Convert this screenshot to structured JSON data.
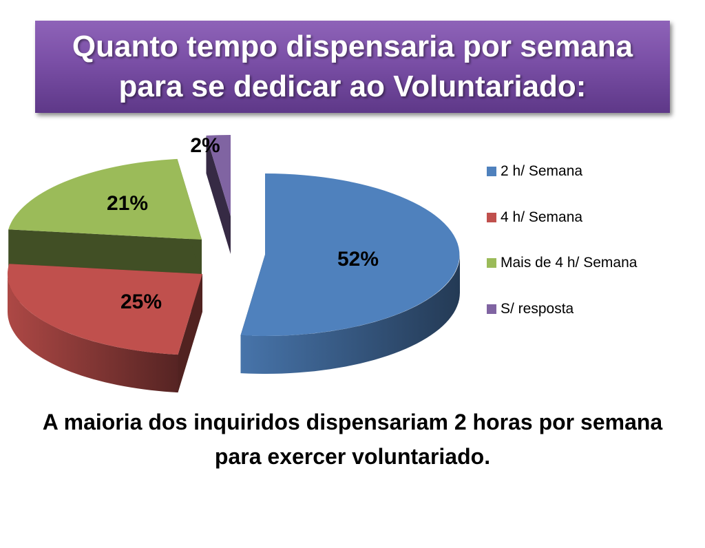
{
  "title": "Quanto tempo dispensaria por semana para se dedicar ao Voluntariado:",
  "caption": "A maioria  dos inquiridos  dispensariam  2 horas por semana para exercer voluntariado.",
  "chart_data": {
    "type": "pie",
    "style": "3d-exploded",
    "legend_placement": "right",
    "categories": [
      "2 h/ Semana",
      "4 h/ Semana",
      "Mais de 4 h/ Semana",
      "S/ resposta"
    ],
    "values": [
      52,
      25,
      21,
      2
    ],
    "data_labels": [
      "52%",
      "25%",
      "21%",
      "2%"
    ],
    "colors": [
      "#4f81bd",
      "#c0504d",
      "#9bbb59",
      "#8064a2"
    ]
  }
}
